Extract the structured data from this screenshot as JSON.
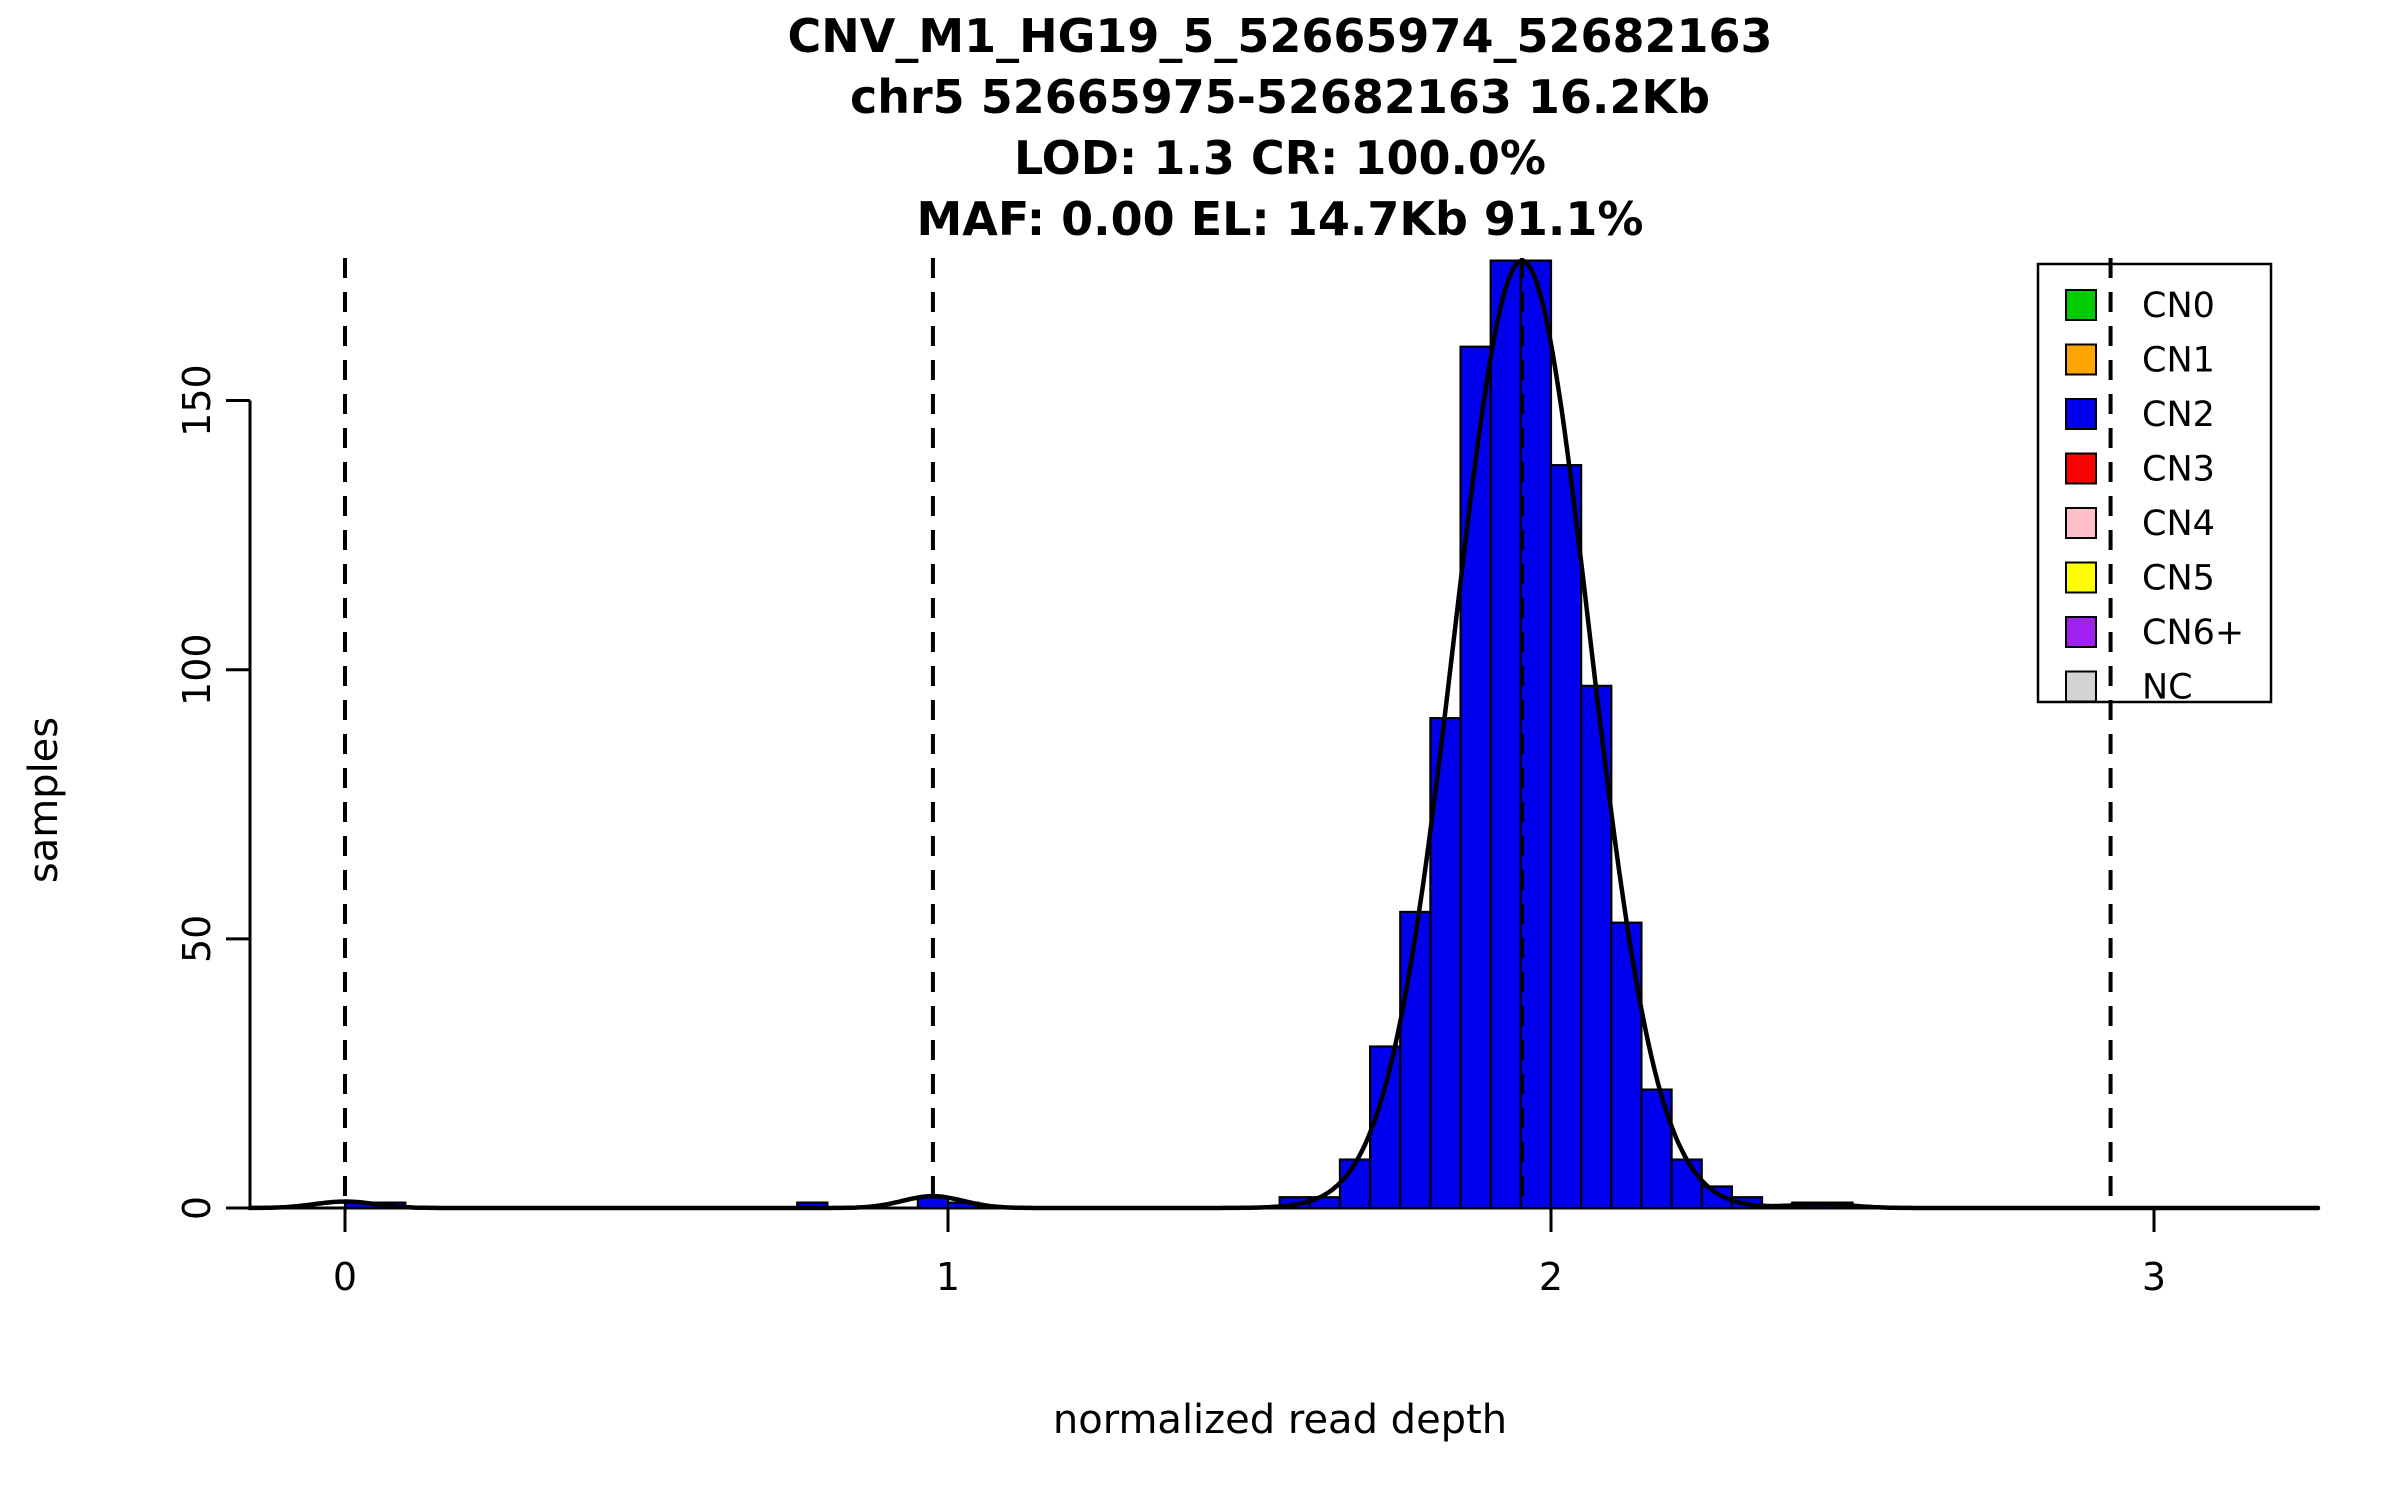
{
  "figure": {
    "title_lines": [
      "CNV_M1_HG19_5_52665974_52682163",
      "chr5 52665975-52682163 16.2Kb",
      "LOD: 1.3 CR: 100.0%",
      "MAF: 0.00 EL: 14.7Kb 91.1%"
    ],
    "xlabel": "normalized read depth",
    "ylabel": "samples"
  },
  "chart_data": {
    "type": "bar",
    "subtype": "histogram-with-gaussian-fit",
    "title": "CNV_M1_HG19_5_52665974_52682163",
    "subtitle_lines": [
      "chr5 52665975-52682163 16.2Kb",
      "LOD: 1.3 CR: 100.0%",
      "MAF: 0.00 EL: 14.7Kb 91.1%"
    ],
    "xlabel": "normalized read depth",
    "ylabel": "samples",
    "xlim": [
      -0.158,
      3.275
    ],
    "ylim": [
      0,
      176.5
    ],
    "x_ticks": [
      0,
      1,
      2,
      3
    ],
    "y_ticks": [
      0,
      50,
      100,
      150
    ],
    "bin_width": 0.05,
    "grid": false,
    "histogram": {
      "color": "#0000EE",
      "stroke": "#000000",
      "bars": [
        {
          "x": 0.0,
          "n": 1
        },
        {
          "x": 0.05,
          "n": 1
        },
        {
          "x": 0.75,
          "n": 1
        },
        {
          "x": 0.95,
          "n": 2
        },
        {
          "x": 1.0,
          "n": 1
        },
        {
          "x": 1.55,
          "n": 2
        },
        {
          "x": 1.6,
          "n": 2
        },
        {
          "x": 1.65,
          "n": 9
        },
        {
          "x": 1.7,
          "n": 30
        },
        {
          "x": 1.75,
          "n": 55
        },
        {
          "x": 1.8,
          "n": 91
        },
        {
          "x": 1.85,
          "n": 160
        },
        {
          "x": 1.9,
          "n": 176
        },
        {
          "x": 1.95,
          "n": 176
        },
        {
          "x": 2.0,
          "n": 138
        },
        {
          "x": 2.05,
          "n": 97
        },
        {
          "x": 2.1,
          "n": 53
        },
        {
          "x": 2.15,
          "n": 22
        },
        {
          "x": 2.2,
          "n": 9
        },
        {
          "x": 2.25,
          "n": 4
        },
        {
          "x": 2.3,
          "n": 2
        },
        {
          "x": 2.4,
          "n": 1
        },
        {
          "x": 2.45,
          "n": 1
        }
      ]
    },
    "fit_curve": {
      "color": "#000000",
      "components": [
        {
          "mean": 1.952,
          "sd": 0.112,
          "amp": 176
        },
        {
          "mean": 0.975,
          "sd": 0.05,
          "amp": 2.2
        },
        {
          "mean": 0.0,
          "sd": 0.05,
          "amp": 1.2
        },
        {
          "mean": 2.45,
          "sd": 0.05,
          "amp": 0.7
        }
      ]
    },
    "dashed_lines": {
      "meaning": "copy-number cluster centers",
      "x": [
        0.0,
        0.975,
        1.952,
        2.928
      ]
    },
    "legend": {
      "position": "top-right",
      "entries": [
        {
          "label": "CN0",
          "color": "#00CD00"
        },
        {
          "label": "CN1",
          "color": "#FFA500"
        },
        {
          "label": "CN2",
          "color": "#0000EE"
        },
        {
          "label": "CN3",
          "color": "#FF0000"
        },
        {
          "label": "CN4",
          "color": "#FFC0CB"
        },
        {
          "label": "CN5",
          "color": "#FFFF00"
        },
        {
          "label": "CN6+",
          "color": "#A020F0"
        },
        {
          "label": "NC",
          "color": "#D3D3D3"
        }
      ]
    }
  }
}
